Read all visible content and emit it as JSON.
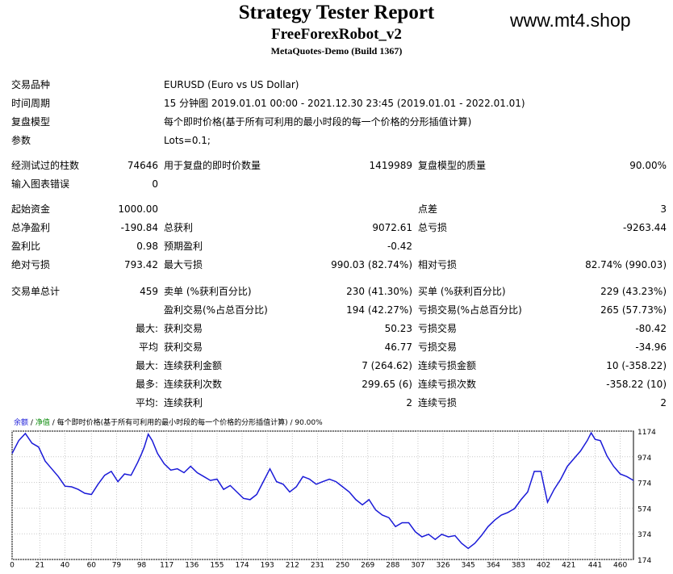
{
  "header": {
    "title": "Strategy Tester Report",
    "subtitle": "FreeForexRobot_v2",
    "build": "MetaQuotes-Demo (Build 1367)",
    "site": "www.mt4.shop"
  },
  "info": [
    {
      "label": "交易品种",
      "value": "EURUSD (Euro vs US Dollar)"
    },
    {
      "label": "时间周期",
      "value": "15 分钟图 2019.01.01 00:00 - 2021.12.30 23:45 (2019.01.01 - 2022.01.01)"
    },
    {
      "label": "复盘模型",
      "value": "每个即时价格(基于所有可利用的最小时段的每一个价格的分形插值计算)"
    },
    {
      "label": "参数",
      "value": "Lots=0.1;"
    }
  ],
  "stats": {
    "bars_label": "经测试过的柱数",
    "bars": "74646",
    "ticks_label": "用于复盘的即时价数量",
    "ticks": "1419989",
    "quality_label": "复盘模型的质量",
    "quality": "90.00%",
    "errors_label": "输入图表错误",
    "errors": "0",
    "deposit_label": "起始资金",
    "deposit": "1000.00",
    "spread_label": "点差",
    "spread": "3",
    "net_label": "总净盈利",
    "net": "-190.84",
    "gross_profit_label": "总获利",
    "gross_profit": "9072.61",
    "gross_loss_label": "总亏损",
    "gross_loss": "-9263.44",
    "pf_label": "盈利比",
    "pf": "0.98",
    "expected_label": "预期盈利",
    "expected": "-0.42",
    "abs_dd_label": "绝对亏损",
    "abs_dd": "793.42",
    "max_dd_label": "最大亏损",
    "max_dd": "990.03 (82.74%)",
    "rel_dd_label": "相对亏损",
    "rel_dd": "82.74% (990.03)",
    "total_label": "交易单总计",
    "total": "459",
    "short_label": "卖单 (%获利百分比)",
    "short": "230 (41.30%)",
    "long_label": "买单 (%获利百分比)",
    "long": "229 (43.23%)",
    "profit_trades_label": "盈利交易(%占总百分比)",
    "profit_trades": "194 (42.27%)",
    "loss_trades_label": "亏损交易(%占总百分比)",
    "loss_trades": "265 (57.73%)",
    "r1_prefix": "最大:",
    "r1_a_label": "获利交易",
    "r1_a": "50.23",
    "r1_b_label": "亏损交易",
    "r1_b": "-80.42",
    "r2_prefix": "平均",
    "r2_a_label": "获利交易",
    "r2_a": "46.77",
    "r2_b_label": "亏损交易",
    "r2_b": "-34.96",
    "r3_prefix": "最大:",
    "r3_a_label": "连续获利金额",
    "r3_a": "7 (264.62)",
    "r3_b_label": "连续亏损金额",
    "r3_b": "10 (-358.22)",
    "r4_prefix": "最多:",
    "r4_a_label": "连续获利次数",
    "r4_a": "299.65 (6)",
    "r4_b_label": "连续亏损次数",
    "r4_b": "-358.22 (10)",
    "r5_prefix": "平均:",
    "r5_a_label": "连续获利",
    "r5_a": "2",
    "r5_b_label": "连续亏损",
    "r5_b": "2"
  },
  "chart_legend": {
    "balance": "余额",
    "sep": "/",
    "equity": "净值",
    "rest": "/ 每个即时价格(基于所有可利用的最小时段的每一个价格的分形插值计算) / 90.00%"
  },
  "colors": {
    "balance_line": "#1a1ad8",
    "equity_label": "#0a8a0a",
    "grid": "#c8c8c8"
  },
  "chart_data": {
    "type": "line",
    "title": "",
    "xlabel": "",
    "ylabel": "",
    "x_ticks": [
      0,
      21,
      40,
      60,
      79,
      98,
      117,
      136,
      155,
      174,
      193,
      212,
      231,
      250,
      269,
      288,
      307,
      326,
      345,
      364,
      383,
      402,
      421,
      441,
      460
    ],
    "y_ticks": [
      174,
      374,
      574,
      774,
      974,
      1174
    ],
    "xlim": [
      0,
      470
    ],
    "ylim": [
      174,
      1174
    ],
    "grid": true,
    "series": [
      {
        "values": [
          [
            0,
            1000
          ],
          [
            5,
            1100
          ],
          [
            10,
            1155
          ],
          [
            15,
            1080
          ],
          [
            20,
            1050
          ],
          [
            25,
            940
          ],
          [
            30,
            880
          ],
          [
            35,
            820
          ],
          [
            40,
            745
          ],
          [
            45,
            740
          ],
          [
            50,
            720
          ],
          [
            55,
            690
          ],
          [
            60,
            680
          ],
          [
            65,
            760
          ],
          [
            70,
            830
          ],
          [
            75,
            860
          ],
          [
            80,
            780
          ],
          [
            85,
            840
          ],
          [
            90,
            830
          ],
          [
            95,
            930
          ],
          [
            98,
            1000
          ],
          [
            100,
            1050
          ],
          [
            103,
            1150
          ],
          [
            106,
            1100
          ],
          [
            110,
            1000
          ],
          [
            115,
            920
          ],
          [
            120,
            870
          ],
          [
            125,
            880
          ],
          [
            130,
            850
          ],
          [
            135,
            900
          ],
          [
            140,
            850
          ],
          [
            145,
            820
          ],
          [
            150,
            790
          ],
          [
            155,
            800
          ],
          [
            160,
            720
          ],
          [
            165,
            750
          ],
          [
            170,
            700
          ],
          [
            175,
            650
          ],
          [
            180,
            640
          ],
          [
            185,
            680
          ],
          [
            190,
            780
          ],
          [
            195,
            880
          ],
          [
            200,
            780
          ],
          [
            205,
            760
          ],
          [
            210,
            700
          ],
          [
            215,
            740
          ],
          [
            220,
            820
          ],
          [
            225,
            800
          ],
          [
            230,
            760
          ],
          [
            235,
            780
          ],
          [
            240,
            800
          ],
          [
            245,
            780
          ],
          [
            250,
            740
          ],
          [
            255,
            700
          ],
          [
            260,
            640
          ],
          [
            265,
            600
          ],
          [
            270,
            640
          ],
          [
            275,
            560
          ],
          [
            280,
            520
          ],
          [
            285,
            500
          ],
          [
            290,
            430
          ],
          [
            295,
            460
          ],
          [
            300,
            460
          ],
          [
            305,
            390
          ],
          [
            310,
            350
          ],
          [
            315,
            370
          ],
          [
            320,
            330
          ],
          [
            325,
            370
          ],
          [
            330,
            350
          ],
          [
            335,
            360
          ],
          [
            340,
            300
          ],
          [
            345,
            260
          ],
          [
            350,
            300
          ],
          [
            355,
            360
          ],
          [
            360,
            430
          ],
          [
            365,
            480
          ],
          [
            370,
            520
          ],
          [
            375,
            540
          ],
          [
            380,
            570
          ],
          [
            385,
            640
          ],
          [
            390,
            700
          ],
          [
            395,
            860
          ],
          [
            400,
            860
          ],
          [
            405,
            620
          ],
          [
            410,
            720
          ],
          [
            415,
            800
          ],
          [
            420,
            900
          ],
          [
            425,
            960
          ],
          [
            430,
            1020
          ],
          [
            435,
            1100
          ],
          [
            438,
            1160
          ],
          [
            441,
            1110
          ],
          [
            445,
            1100
          ],
          [
            450,
            980
          ],
          [
            455,
            900
          ],
          [
            460,
            840
          ],
          [
            465,
            820
          ],
          [
            470,
            790
          ]
        ]
      }
    ]
  }
}
